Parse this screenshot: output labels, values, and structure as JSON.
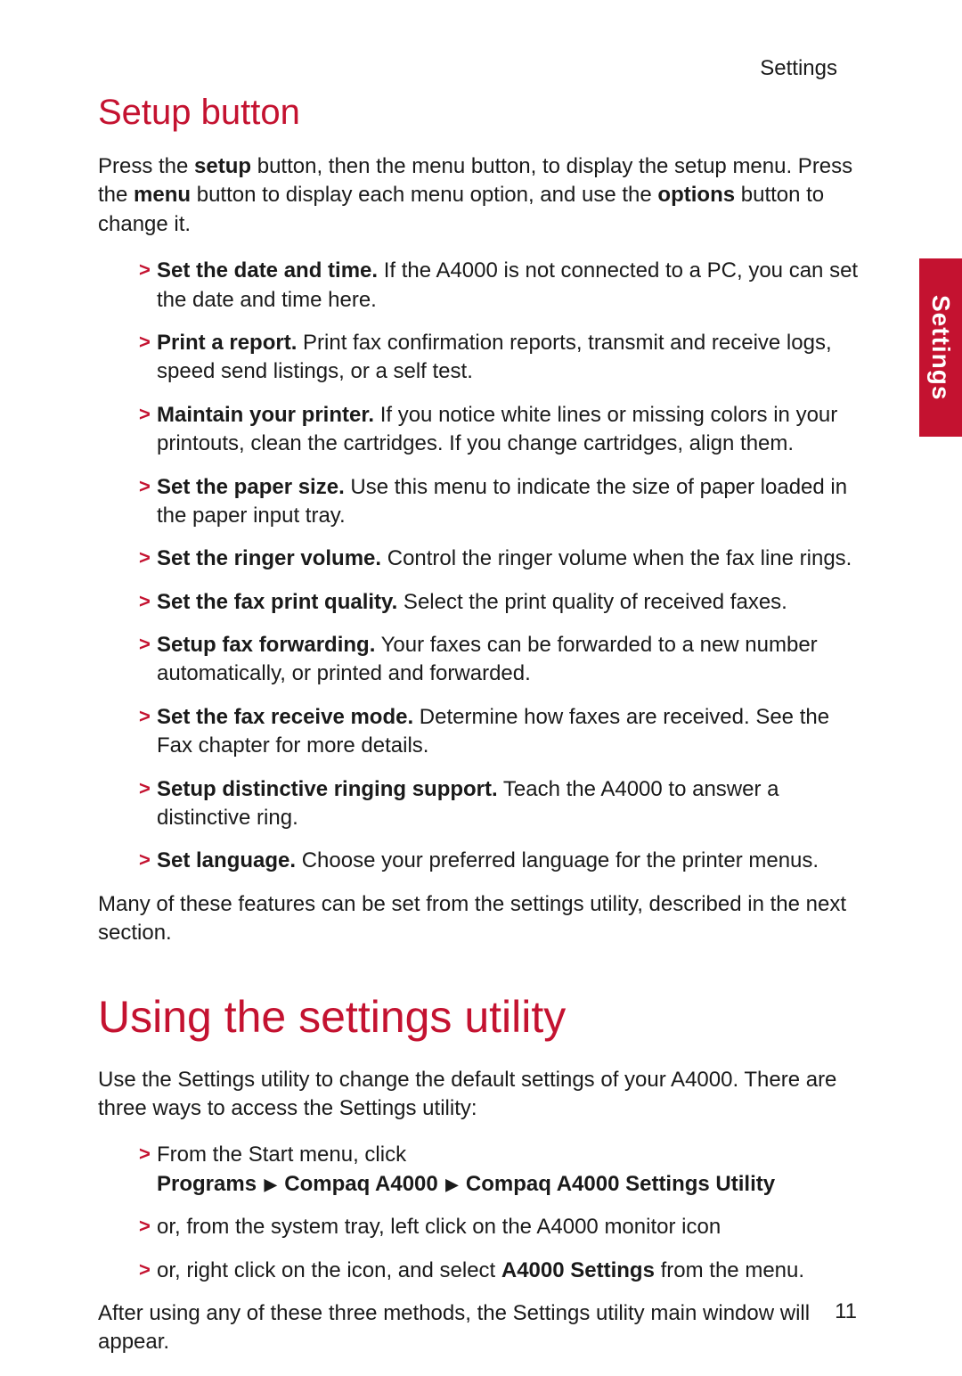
{
  "colors": {
    "accent": "#c41230",
    "text": "#1a1a1a",
    "background": "#ffffff",
    "tab_bg": "#c41230",
    "tab_text": "#ffffff"
  },
  "typography": {
    "body_fontsize_pt": 18,
    "h2_fontsize_pt": 30,
    "h1_fontsize_pt": 38,
    "font_family": "Segoe UI / Myriad Pro / sans-serif"
  },
  "header": {
    "running_head": "Settings"
  },
  "side_tab": {
    "label": "Settings"
  },
  "section1": {
    "title": "Setup button",
    "intro_parts": {
      "p1": "Press the ",
      "b1": "setup",
      "p2": " button, then the menu button, to display the setup menu. Press the ",
      "b2": "menu",
      "p3": " button to display each menu option, and use the ",
      "b3": "options",
      "p4": " button to change it."
    },
    "items": [
      {
        "title": "Set the date and time.",
        "desc": " If the A4000 is not connected to a PC, you can set the date and time here."
      },
      {
        "title": "Print a report.",
        "desc": " Print fax confirmation reports, transmit and receive logs, speed send listings, or a self test."
      },
      {
        "title": "Maintain your printer.",
        "desc": " If you notice white lines or missing colors in your printouts, clean the cartridges. If you change cartridges, align them."
      },
      {
        "title": "Set the paper size.",
        "desc": " Use this menu to indicate the size of paper loaded in the paper input tray."
      },
      {
        "title": "Set the ringer volume.",
        "desc": " Control the ringer volume when the fax line rings."
      },
      {
        "title": "Set the fax print quality.",
        "desc": " Select the print quality of received faxes."
      },
      {
        "title": "Setup fax forwarding.",
        "desc": " Your faxes can be forwarded to a new number automatically, or printed and forwarded."
      },
      {
        "title": "Set the fax receive mode.",
        "desc": " Determine how faxes are received. See the Fax chapter for more details."
      },
      {
        "title": "Setup distinctive ringing support.",
        "desc": " Teach the A4000 to answer a distinctive ring."
      },
      {
        "title": "Set language.",
        "desc": " Choose your preferred language for the printer menus."
      }
    ],
    "outro": "Many of these features can be set from the settings utility, described in the next section."
  },
  "section2": {
    "title": "Using the settings utility",
    "intro": "Use the Settings utility to change the default settings of your A4000. There are three ways to access the Settings utility:",
    "items": {
      "i0": {
        "line1": "From the Start menu, click",
        "path_prefix": "Programs",
        "path_mid": "Compaq A4000",
        "path_end": "Compaq A4000 Settings Utility"
      },
      "i1": {
        "text": "or, from the system tray, left click on the A4000 monitor icon"
      },
      "i2": {
        "pre": "or, right click on the icon, and select ",
        "bold": "A4000 Settings",
        "post": " from the menu."
      }
    },
    "outro": "After using any of these three methods, the Settings utility main window will appear."
  },
  "page_number": "11"
}
